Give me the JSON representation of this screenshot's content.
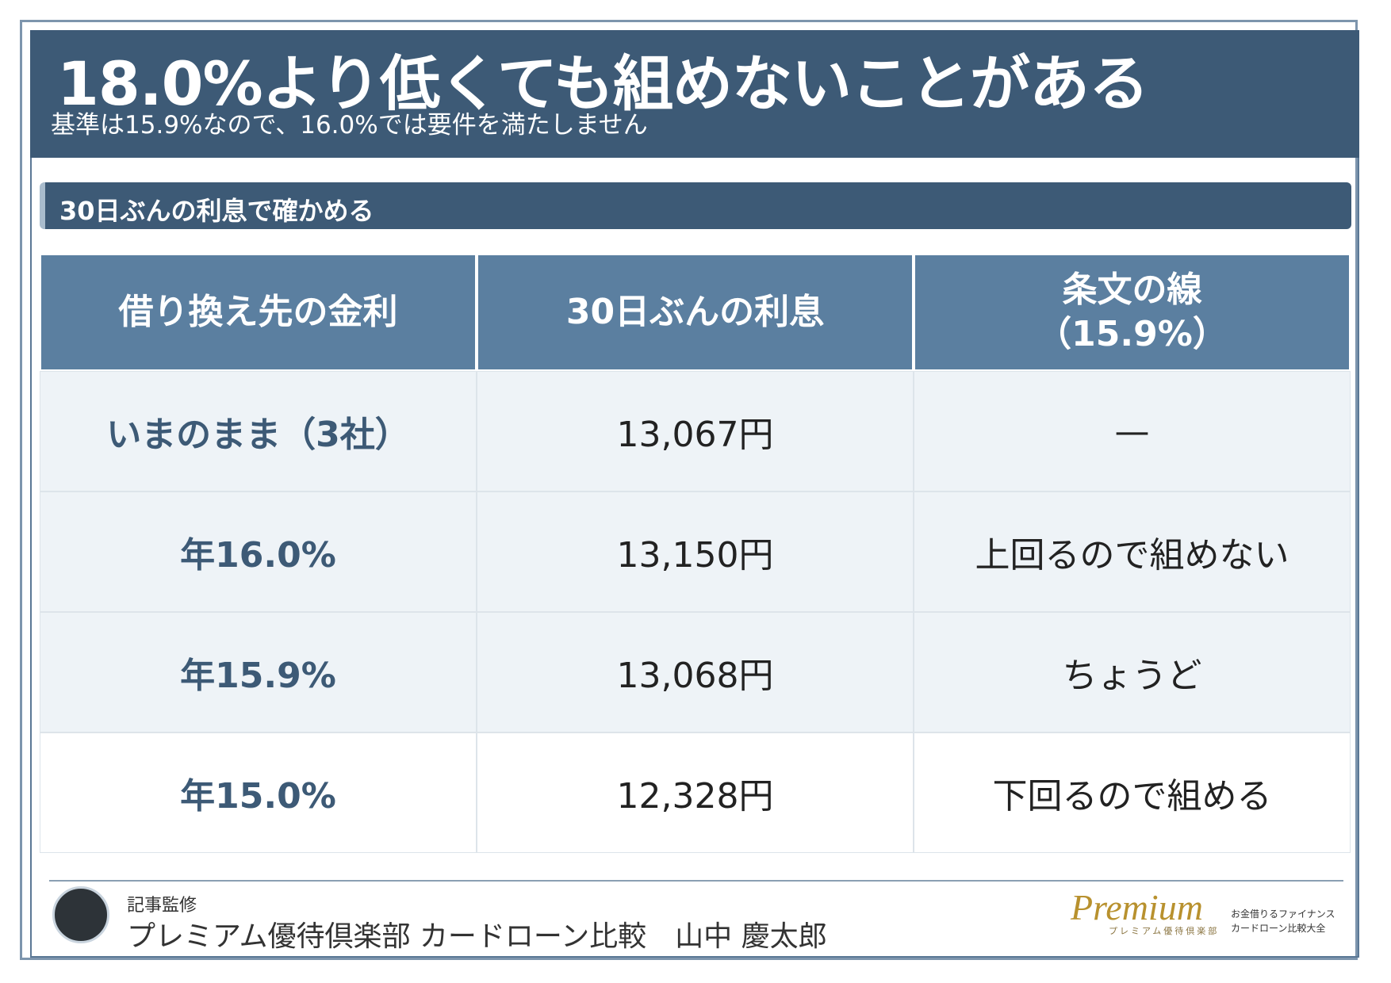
{
  "header": {
    "title": "18.0%より低くても組めないことがある",
    "subtitle": "基準は15.9%なので、16.0%では要件を満たしません"
  },
  "section": {
    "title": "30日ぶんの利息で確かめる"
  },
  "table": {
    "columns": [
      "借り換え先の金利",
      "30日ぶんの利息",
      "条文の線（15.9%）"
    ],
    "rows": [
      [
        "いまのまま（3社）",
        "13,067円",
        "—"
      ],
      [
        "年16.0%",
        "13,150円",
        "上回るので組めない"
      ],
      [
        "年15.9%",
        "13,068円",
        "ちょうど"
      ],
      [
        "年15.0%",
        "12,328円",
        "下回るので組める"
      ]
    ]
  },
  "footer": {
    "label": "記事監修",
    "author": "プレミアム優待倶楽部 カードローン比較　山中 慶太郎",
    "logo": {
      "name": "Premium",
      "sub": "プレミアム優待倶楽部",
      "tagline1": "お金借りるファイナンス",
      "tagline2": "カードローン比較大全"
    }
  }
}
